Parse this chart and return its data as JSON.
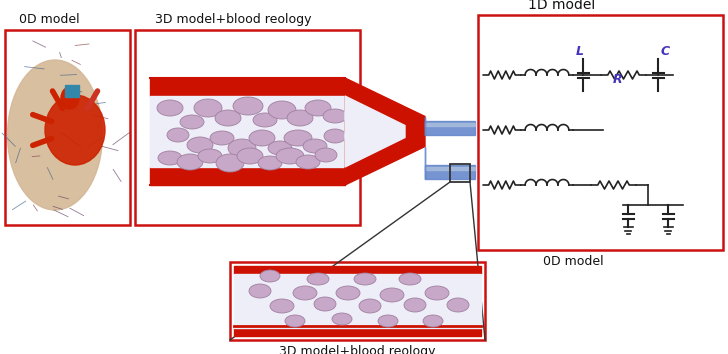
{
  "bg_color": "#ffffff",
  "red_border": "#cc1111",
  "text_color": "#111111",
  "label_0d_model_left": "0D model",
  "label_3d_model_top": "3D model+blood reology",
  "label_1d_model": "1D model",
  "label_0d_model_right": "0D model",
  "label_3d_model_bottom": "3D model+blood reology",
  "rbc_color": "#c8a8c8",
  "rbc_edge": "#a080a0",
  "vessel_inner": "#eeeef8",
  "circuit_color": "#222222",
  "L_color": "#4433bb",
  "R_color": "#4433bb",
  "C_color": "#4433bb",
  "blue_arrow": "#6688cc",
  "blue_arrow_light": "#aabedd"
}
